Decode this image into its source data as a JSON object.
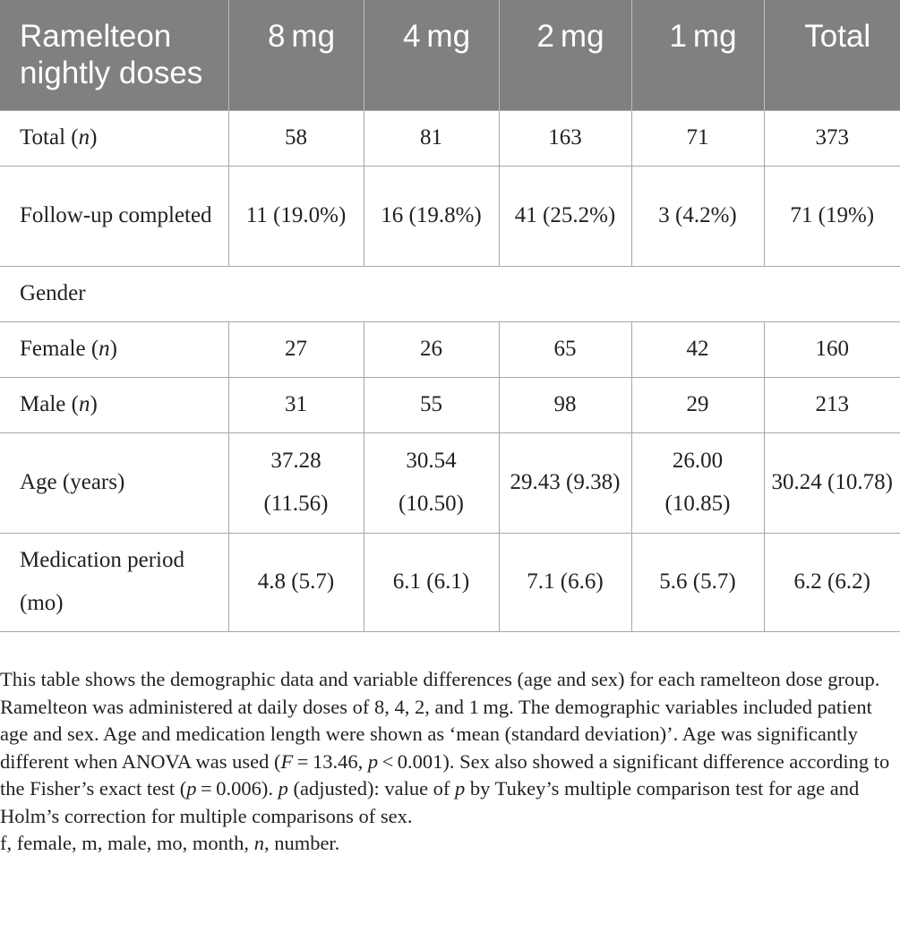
{
  "table": {
    "header": [
      "Ramelteon nightly doses",
      "8 mg",
      "4 mg",
      "2 mg",
      "1 mg",
      "Total"
    ],
    "rows": {
      "total": {
        "label_text": "Total (",
        "label_italic": "n",
        "label_end": ")",
        "cells": [
          "58",
          "81",
          "163",
          "71",
          "373"
        ]
      },
      "followup": {
        "label": "Follow-up completed",
        "cells": [
          "11 (19.0%)",
          "16 (19.8%)",
          "41 (25.2%)",
          "3 (4.2%)",
          "71 (19%)"
        ]
      },
      "gender": {
        "label": "Gender"
      },
      "female": {
        "label_text": "Female (",
        "label_italic": "n",
        "label_end": ")",
        "cells": [
          "27",
          "26",
          "65",
          "42",
          "160"
        ]
      },
      "male": {
        "label_text": "Male (",
        "label_italic": "n",
        "label_end": ")",
        "cells": [
          "31",
          "55",
          "98",
          "29",
          "213"
        ]
      },
      "age": {
        "label": "Age (years)",
        "cells": [
          "37.28 (11.56)",
          "30.54 (10.50)",
          "29.43 (9.38)",
          "26.00 (10.85)",
          "30.24 (10.78)"
        ]
      },
      "medication": {
        "label": "Medication period (mo)",
        "cells": [
          "4.8 (5.7)",
          "6.1 (6.1)",
          "7.1 (6.6)",
          "5.6 (5.7)",
          "6.2 (6.2)"
        ]
      }
    }
  },
  "footnote": {
    "s1": "This table shows the demographic data and variable differences (age and sex) for each ramelteon dose group. Ramelteon was administered at daily doses of 8, 4, 2, and 1 mg. The demographic variables included patient age and sex. Age and medication length were shown as ‘mean (standard deviation)’. Age was significantly different when ANOVA was used (",
    "F": "F",
    "s2": " = 13.46, ",
    "p1": "p",
    "s3": " < 0.001). Sex also showed a significant difference according to the Fisher’s exact test (",
    "p2": "p",
    "s4": " = 0.006). ",
    "p3": "p",
    "s5": " (adjusted): value of ",
    "p4": "p",
    "s6": " by Tukey’s multiple comparison test for age and Holm’s correction for multiple comparisons of sex.",
    "abbr1": "f, female, m, male, mo, month, ",
    "abbr_n": "n",
    "abbr2": ", number."
  }
}
